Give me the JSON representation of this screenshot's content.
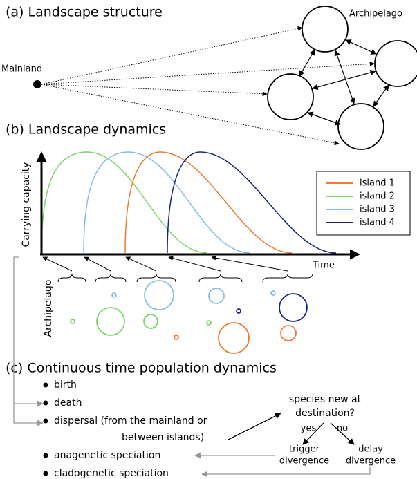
{
  "panel_a": {
    "title": "(a) Landscape structure",
    "archipelago_label": "Archipelago",
    "mainland_label": "Mainland"
  },
  "panel_b": {
    "title": "(b) Landscape dynamics",
    "y_axis_label": "Carrying capacity",
    "x_axis_label": "Time",
    "legend": [
      {
        "name": "island 1",
        "color": "#f07a30"
      },
      {
        "name": "island 2",
        "color": "#7ed26b"
      },
      {
        "name": "island 3",
        "color": "#82bde8"
      },
      {
        "name": "island 4",
        "color": "#1a237e"
      }
    ],
    "archipelago_label": "Archipelago"
  },
  "panel_c": {
    "title": "(c) Continuous time population dynamics",
    "items": [
      "birth",
      "death",
      "dispersal (from the mainland or",
      "between islands)",
      "anagenetic speciation",
      "cladogenetic speciation"
    ],
    "question": [
      "species new at",
      "destination?"
    ],
    "yes": "yes",
    "no": "no",
    "trigger": [
      "trigger",
      "divergence"
    ],
    "delay": [
      "delay",
      "divergence"
    ]
  }
}
